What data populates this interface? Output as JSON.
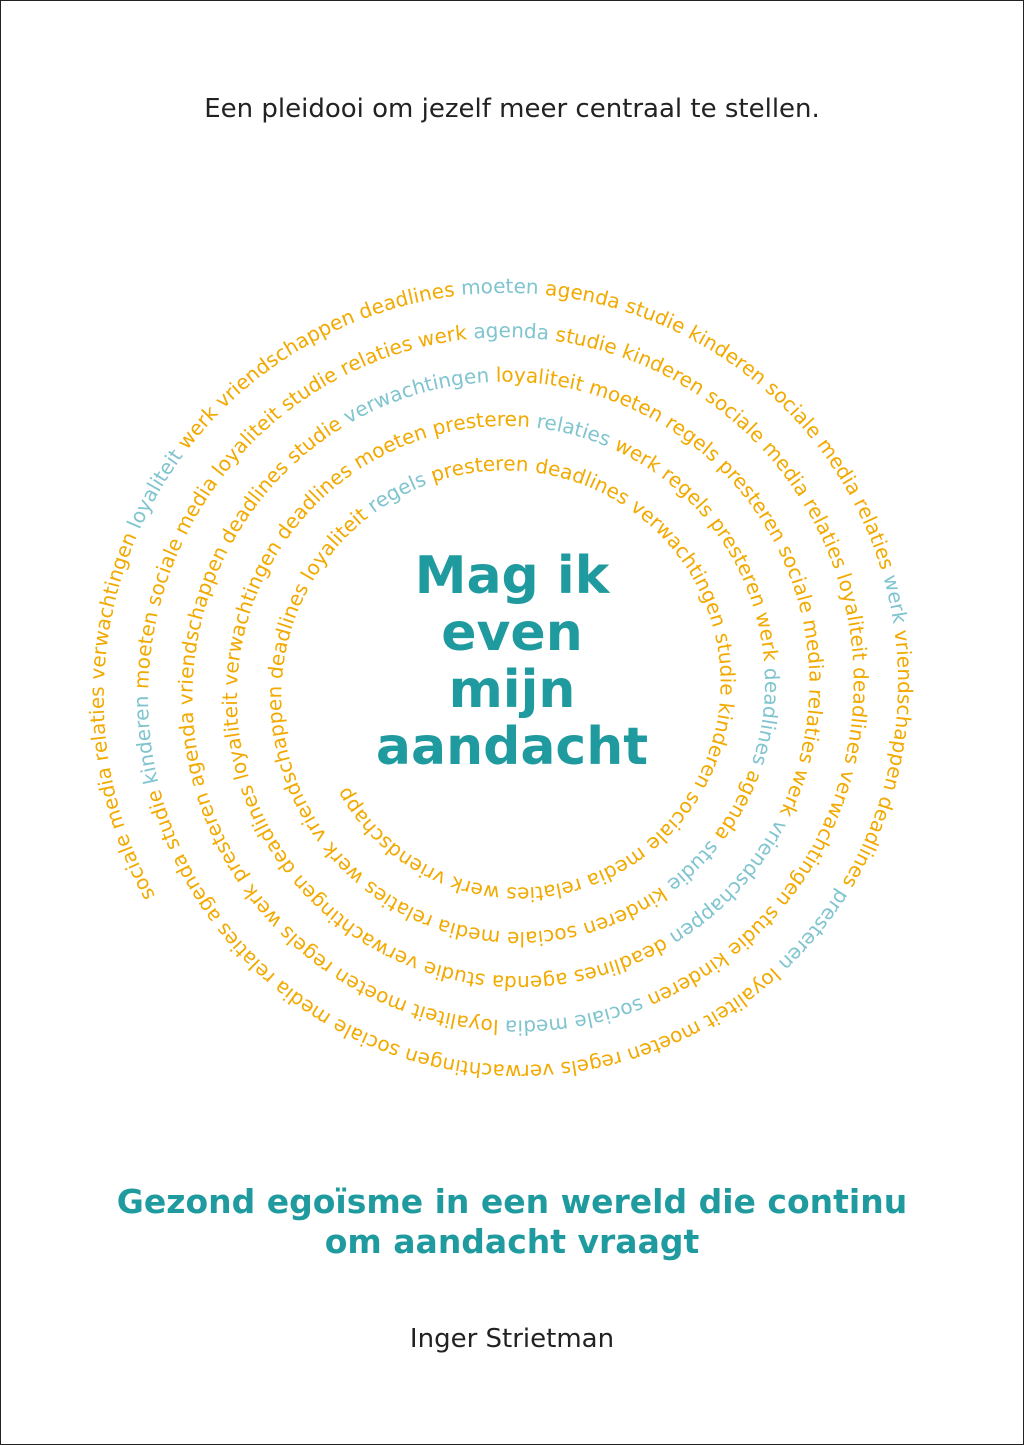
{
  "cover": {
    "tagline": "Een pleidooi om jezelf meer centraal te stellen.",
    "title_lines": [
      "Mag ik",
      "even",
      "mijn",
      "aandacht"
    ],
    "subtitle_lines": [
      "Gezond egoïsme in een wereld die continu",
      "om aandacht vraagt"
    ],
    "author": "Inger Strietman"
  },
  "colors": {
    "teal": "#1f9a9e",
    "orange": "#f2a900",
    "light_blue": "#7fc4cf"
  },
  "spiral_words": [
    {
      "w": "sociale",
      "c": "orange"
    },
    {
      "w": "media",
      "c": "orange"
    },
    {
      "w": "relaties",
      "c": "orange"
    },
    {
      "w": "verwachtingen",
      "c": "orange"
    },
    {
      "w": "loyaliteit",
      "c": "light_blue"
    },
    {
      "w": "werk",
      "c": "orange"
    },
    {
      "w": "vriendschappen",
      "c": "orange"
    },
    {
      "w": "deadlines",
      "c": "orange"
    },
    {
      "w": "moeten",
      "c": "light_blue"
    },
    {
      "w": "agenda",
      "c": "orange"
    },
    {
      "w": "studie",
      "c": "orange"
    },
    {
      "w": "kinderen",
      "c": "orange"
    },
    {
      "w": "sociale",
      "c": "orange"
    },
    {
      "w": "media",
      "c": "orange"
    },
    {
      "w": "relaties",
      "c": "orange"
    },
    {
      "w": "werk",
      "c": "light_blue"
    },
    {
      "w": "vriendschappen",
      "c": "orange"
    },
    {
      "w": "deadlines",
      "c": "orange"
    },
    {
      "w": "presteren",
      "c": "light_blue"
    },
    {
      "w": "loyaliteit",
      "c": "orange"
    },
    {
      "w": "moeten",
      "c": "orange"
    },
    {
      "w": "regels",
      "c": "orange"
    },
    {
      "w": "verwachtingen",
      "c": "orange"
    },
    {
      "w": "sociale",
      "c": "orange"
    },
    {
      "w": "media",
      "c": "orange"
    },
    {
      "w": "relaties",
      "c": "orange"
    },
    {
      "w": "agenda",
      "c": "orange"
    },
    {
      "w": "studie",
      "c": "orange"
    },
    {
      "w": "kinderen",
      "c": "light_blue"
    },
    {
      "w": "moeten",
      "c": "orange"
    },
    {
      "w": "sociale",
      "c": "orange"
    },
    {
      "w": "media",
      "c": "orange"
    },
    {
      "w": "loyaliteit",
      "c": "orange"
    },
    {
      "w": "studie",
      "c": "orange"
    },
    {
      "w": "relaties",
      "c": "orange"
    },
    {
      "w": "werk",
      "c": "orange"
    },
    {
      "w": "agenda",
      "c": "light_blue"
    },
    {
      "w": "studie",
      "c": "orange"
    },
    {
      "w": "kinderen",
      "c": "orange"
    },
    {
      "w": "sociale",
      "c": "orange"
    },
    {
      "w": "media",
      "c": "orange"
    },
    {
      "w": "relaties",
      "c": "orange"
    },
    {
      "w": "loyaliteit",
      "c": "orange"
    },
    {
      "w": "deadlines",
      "c": "orange"
    },
    {
      "w": "verwachtingen",
      "c": "orange"
    },
    {
      "w": "studie",
      "c": "orange"
    },
    {
      "w": "kinderen",
      "c": "orange"
    },
    {
      "w": "sociale",
      "c": "light_blue"
    },
    {
      "w": "media",
      "c": "light_blue"
    },
    {
      "w": "loyaliteit",
      "c": "orange"
    },
    {
      "w": "moeten",
      "c": "orange"
    },
    {
      "w": "regels",
      "c": "orange"
    },
    {
      "w": "werk",
      "c": "orange"
    },
    {
      "w": "presteren",
      "c": "orange"
    },
    {
      "w": "agenda",
      "c": "orange"
    },
    {
      "w": "vriendschappen",
      "c": "orange"
    },
    {
      "w": "deadlines",
      "c": "orange"
    },
    {
      "w": "studie",
      "c": "orange"
    },
    {
      "w": "verwachtingen",
      "c": "light_blue"
    },
    {
      "w": "loyaliteit",
      "c": "orange"
    },
    {
      "w": "moeten",
      "c": "orange"
    },
    {
      "w": "regels",
      "c": "orange"
    },
    {
      "w": "presteren",
      "c": "orange"
    },
    {
      "w": "sociale",
      "c": "orange"
    },
    {
      "w": "media",
      "c": "orange"
    },
    {
      "w": "relaties",
      "c": "orange"
    },
    {
      "w": "werk",
      "c": "orange"
    },
    {
      "w": "vriendschappen",
      "c": "light_blue"
    },
    {
      "w": "deadlines",
      "c": "orange"
    },
    {
      "w": "agenda",
      "c": "orange"
    },
    {
      "w": "studie",
      "c": "orange"
    },
    {
      "w": "verwachtingen",
      "c": "orange"
    },
    {
      "w": "deadlines",
      "c": "orange"
    },
    {
      "w": "loyaliteit",
      "c": "orange"
    },
    {
      "w": "verwachtingen",
      "c": "orange"
    },
    {
      "w": "deadlines",
      "c": "orange"
    },
    {
      "w": "moeten",
      "c": "orange"
    },
    {
      "w": "presteren",
      "c": "orange"
    },
    {
      "w": "relaties",
      "c": "light_blue"
    },
    {
      "w": "werk",
      "c": "orange"
    },
    {
      "w": "regels",
      "c": "orange"
    },
    {
      "w": "presteren",
      "c": "orange"
    },
    {
      "w": "werk",
      "c": "orange"
    },
    {
      "w": "deadlines",
      "c": "light_blue"
    },
    {
      "w": "agenda",
      "c": "orange"
    },
    {
      "w": "studie",
      "c": "light_blue"
    },
    {
      "w": "kinderen",
      "c": "orange"
    },
    {
      "w": "sociale",
      "c": "orange"
    },
    {
      "w": "media",
      "c": "orange"
    },
    {
      "w": "relaties",
      "c": "orange"
    },
    {
      "w": "werk",
      "c": "orange"
    },
    {
      "w": "vriendschappen",
      "c": "orange"
    },
    {
      "w": "deadlines",
      "c": "orange"
    },
    {
      "w": "loyaliteit",
      "c": "orange"
    },
    {
      "w": "regels",
      "c": "light_blue"
    },
    {
      "w": "presteren",
      "c": "orange"
    },
    {
      "w": "deadlines",
      "c": "orange"
    },
    {
      "w": "verwachtingen",
      "c": "orange"
    },
    {
      "w": "studie",
      "c": "orange"
    },
    {
      "w": "kinderen",
      "c": "orange"
    },
    {
      "w": "sociale",
      "c": "orange"
    },
    {
      "w": "media",
      "c": "orange"
    },
    {
      "w": "relaties",
      "c": "orange"
    },
    {
      "w": "werk",
      "c": "orange"
    },
    {
      "w": "vriendschappen",
      "c": "orange"
    },
    {
      "w": "verwachtingen",
      "c": "orange"
    },
    {
      "w": "loyaliteit",
      "c": "orange"
    },
    {
      "w": "moeten",
      "c": "orange"
    },
    {
      "w": "presteren",
      "c": "orange"
    },
    {
      "w": "agenda",
      "c": "orange"
    },
    {
      "w": "kinderen",
      "c": "orange"
    },
    {
      "w": "sociale",
      "c": "orange"
    },
    {
      "w": "media",
      "c": "orange"
    },
    {
      "w": "relaties",
      "c": "orange"
    },
    {
      "w": "regels",
      "c": "light_blue"
    },
    {
      "w": "presteren",
      "c": "orange"
    },
    {
      "w": "deadlines",
      "c": "orange"
    },
    {
      "w": "vriendschappen",
      "c": "orange"
    },
    {
      "w": "deadlines",
      "c": "orange"
    }
  ]
}
